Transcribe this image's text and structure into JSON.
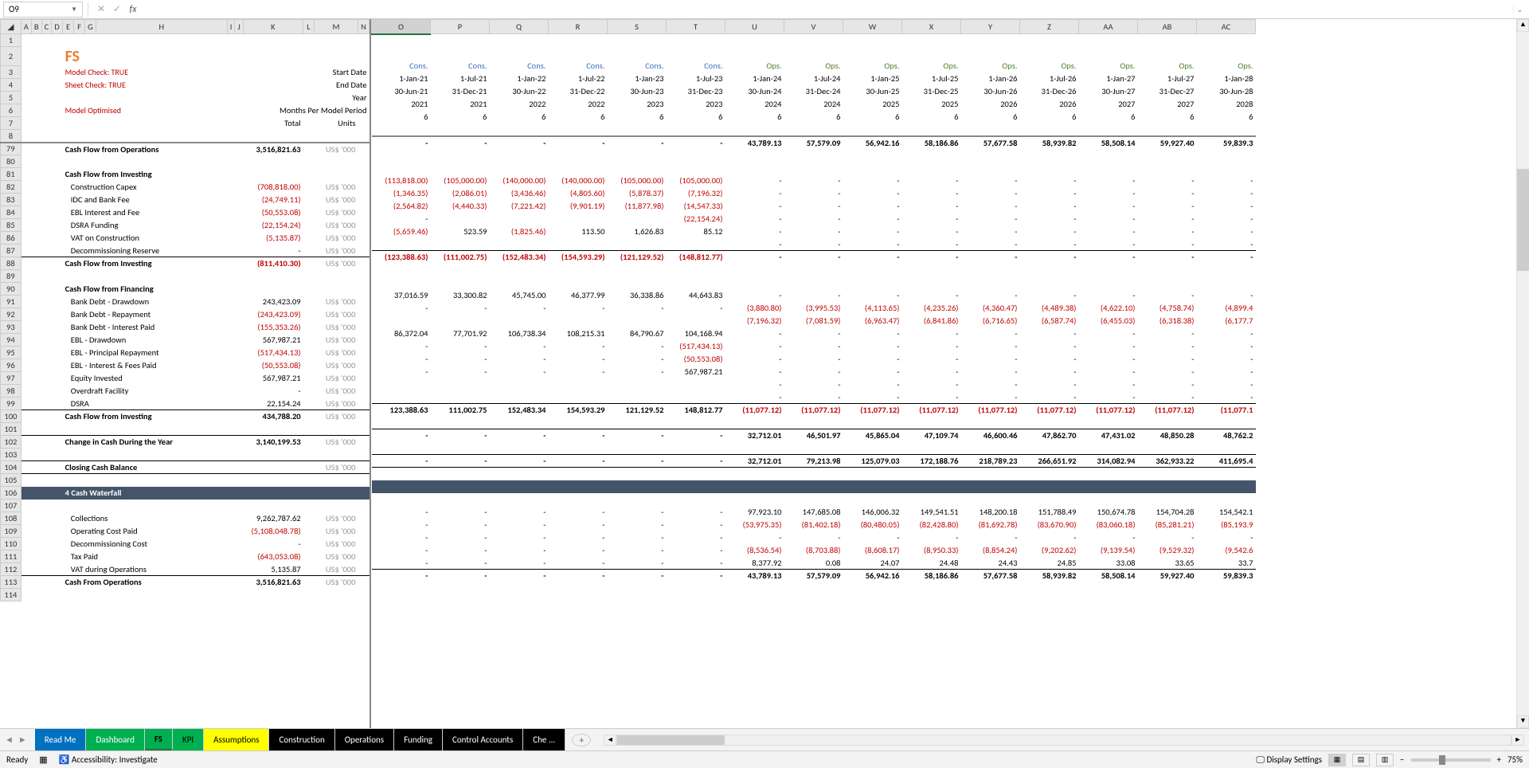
{
  "name_box": "O9",
  "formula": "",
  "title_cell": "FS",
  "checks": [
    "Model Check: TRUE",
    "Sheet Check: TRUE",
    "Model Optimised"
  ],
  "header_labels": {
    "start_date": "Start Date",
    "end_date": "End Date",
    "year": "Year",
    "months": "Months Per Model Period",
    "total": "Total",
    "units": "Units"
  },
  "col_letters_frozen": [
    "",
    "A",
    "B",
    "C",
    "D",
    "E",
    "F",
    "G",
    "H",
    "I",
    "J",
    "K",
    "L",
    "M",
    "N"
  ],
  "col_letters_scroll": [
    "O",
    "P",
    "Q",
    "R",
    "S",
    "T",
    "U",
    "V",
    "W",
    "X",
    "Y",
    "Z",
    "AA",
    "AB",
    "AC"
  ],
  "periods": [
    {
      "type": "Cons.",
      "start": "1-Jan-21",
      "end": "30-Jun-21",
      "year": "2021",
      "months": "6"
    },
    {
      "type": "Cons.",
      "start": "1-Jul-21",
      "end": "31-Dec-21",
      "year": "2021",
      "months": "6"
    },
    {
      "type": "Cons.",
      "start": "1-Jan-22",
      "end": "30-Jun-22",
      "year": "2022",
      "months": "6"
    },
    {
      "type": "Cons.",
      "start": "1-Jul-22",
      "end": "31-Dec-22",
      "year": "2022",
      "months": "6"
    },
    {
      "type": "Cons.",
      "start": "1-Jan-23",
      "end": "30-Jun-23",
      "year": "2023",
      "months": "6"
    },
    {
      "type": "Cons.",
      "start": "1-Jul-23",
      "end": "31-Dec-23",
      "year": "2023",
      "months": "6"
    },
    {
      "type": "Ops.",
      "start": "1-Jan-24",
      "end": "30-Jun-24",
      "year": "2024",
      "months": "6"
    },
    {
      "type": "Ops.",
      "start": "1-Jul-24",
      "end": "31-Dec-24",
      "year": "2024",
      "months": "6"
    },
    {
      "type": "Ops.",
      "start": "1-Jan-25",
      "end": "30-Jun-25",
      "year": "2025",
      "months": "6"
    },
    {
      "type": "Ops.",
      "start": "1-Jul-25",
      "end": "31-Dec-25",
      "year": "2025",
      "months": "6"
    },
    {
      "type": "Ops.",
      "start": "1-Jan-26",
      "end": "30-Jun-26",
      "year": "2026",
      "months": "6"
    },
    {
      "type": "Ops.",
      "start": "1-Jul-26",
      "end": "31-Dec-26",
      "year": "2026",
      "months": "6"
    },
    {
      "type": "Ops.",
      "start": "1-Jan-27",
      "end": "30-Jun-27",
      "year": "2027",
      "months": "6"
    },
    {
      "type": "Ops.",
      "start": "1-Jul-27",
      "end": "31-Dec-27",
      "year": "2027",
      "months": "6"
    },
    {
      "type": "Ops.",
      "start": "1-Jan-28",
      "end": "30-Jun-28",
      "year": "2028",
      "months": "6"
    }
  ],
  "rows": [
    {
      "r": 79,
      "label": "Cash Flow from Operations",
      "bold": true,
      "total": "3,516,821.63",
      "units": "US$ '000",
      "vals": [
        "-",
        "-",
        "-",
        "-",
        "-",
        "-",
        "43,789.13",
        "57,579.09",
        "56,942.16",
        "58,186.86",
        "57,677.58",
        "58,939.82",
        "58,508.14",
        "59,927.40",
        "59,839.3"
      ],
      "top": true
    },
    {
      "r": 80
    },
    {
      "r": 81,
      "label": "Cash Flow from Investing",
      "bold": true
    },
    {
      "r": 82,
      "label": "Construction Capex",
      "indent": 1,
      "total": "(708,818.00)",
      "neg": true,
      "units": "US$ '000",
      "vals": [
        "(113,818.00)",
        "(105,000.00)",
        "(140,000.00)",
        "(140,000.00)",
        "(105,000.00)",
        "(105,000.00)",
        "-",
        "-",
        "-",
        "-",
        "-",
        "-",
        "-",
        "-",
        "-"
      ]
    },
    {
      "r": 83,
      "label": "IDC and Bank Fee",
      "indent": 1,
      "total": "(24,749.11)",
      "neg": true,
      "units": "US$ '000",
      "vals": [
        "(1,346.35)",
        "(2,086.01)",
        "(3,436.46)",
        "(4,805.60)",
        "(5,878.37)",
        "(7,196.32)",
        "-",
        "-",
        "-",
        "-",
        "-",
        "-",
        "-",
        "-",
        "-"
      ]
    },
    {
      "r": 84,
      "label": "EBL Interest and Fee",
      "indent": 1,
      "total": "(50,553.08)",
      "neg": true,
      "units": "US$ '000",
      "vals": [
        "(2,564.82)",
        "(4,440.33)",
        "(7,221.42)",
        "(9,901.19)",
        "(11,877.98)",
        "(14,547.33)",
        "-",
        "-",
        "-",
        "-",
        "-",
        "-",
        "-",
        "-",
        "-"
      ]
    },
    {
      "r": 85,
      "label": "DSRA Funding",
      "indent": 1,
      "total": "(22,154.24)",
      "neg": true,
      "units": "US$ '000",
      "vals": [
        "-",
        "",
        "",
        "",
        "",
        "(22,154.24)",
        "-",
        "-",
        "-",
        "-",
        "-",
        "-",
        "-",
        "-",
        "-"
      ]
    },
    {
      "r": 86,
      "label": "VAT on Construction",
      "indent": 1,
      "total": "(5,135.87)",
      "neg": true,
      "units": "US$ '000",
      "vals": [
        "(5,659.46)",
        "523.59",
        "(1,825.46)",
        "113.50",
        "1,626.83",
        "85.12",
        "-",
        "-",
        "-",
        "-",
        "-",
        "-",
        "-",
        "-",
        "-"
      ]
    },
    {
      "r": 87,
      "label": "Decommissioning Reserve",
      "indent": 1,
      "total": "-",
      "units": "US$ '000",
      "vals": [
        "",
        "",
        "",
        "",
        "",
        "",
        "-",
        "-",
        "-",
        "-",
        "-",
        "-",
        "-",
        "-",
        "-"
      ]
    },
    {
      "r": 88,
      "label": "Cash Flow from Investing",
      "bold": true,
      "total": "(811,410.30)",
      "neg": true,
      "units": "US$ '000",
      "vals": [
        "(123,388.63)",
        "(111,002.75)",
        "(152,483.34)",
        "(154,593.29)",
        "(121,129.52)",
        "(148,812.77)",
        "-",
        "-",
        "-",
        "-",
        "-",
        "-",
        "-",
        "-",
        "-"
      ],
      "top": true,
      "negvals": true
    },
    {
      "r": 89
    },
    {
      "r": 90,
      "label": "Cash Flow from Financing",
      "bold": true
    },
    {
      "r": 91,
      "label": "Bank Debt - Drawdown",
      "indent": 1,
      "total": "243,423.09",
      "units": "US$ '000",
      "vals": [
        "37,016.59",
        "33,300.82",
        "45,745.00",
        "46,377.99",
        "36,338.86",
        "44,643.83",
        "-",
        "-",
        "-",
        "-",
        "-",
        "-",
        "-",
        "-",
        "-"
      ]
    },
    {
      "r": 92,
      "label": "Bank Debt - Repayment",
      "indent": 1,
      "total": "(243,423.09)",
      "neg": true,
      "units": "US$ '000",
      "vals": [
        "-",
        "-",
        "-",
        "-",
        "-",
        "-",
        "(3,880.80)",
        "(3,995.53)",
        "(4,113.65)",
        "(4,235.26)",
        "(4,360.47)",
        "(4,489.38)",
        "(4,622.10)",
        "(4,758.74)",
        "(4,899.4"
      ]
    },
    {
      "r": 93,
      "label": "Bank Debt - Interest Paid",
      "indent": 1,
      "total": "(155,353.26)",
      "neg": true,
      "units": "US$ '000",
      "vals": [
        "",
        "",
        "",
        "",
        "",
        "",
        "(7,196.32)",
        "(7,081.59)",
        "(6,963.47)",
        "(6,841.86)",
        "(6,716.65)",
        "(6,587.74)",
        "(6,455.03)",
        "(6,318.38)",
        "(6,177.7"
      ]
    },
    {
      "r": 94,
      "label": "EBL - Drawdown",
      "indent": 1,
      "total": "567,987.21",
      "units": "US$ '000",
      "vals": [
        "86,372.04",
        "77,701.92",
        "106,738.34",
        "108,215.31",
        "84,790.67",
        "104,168.94",
        "-",
        "-",
        "-",
        "-",
        "-",
        "-",
        "-",
        "-",
        "-"
      ]
    },
    {
      "r": 95,
      "label": "EBL - Principal Repayment",
      "indent": 1,
      "total": "(517,434.13)",
      "neg": true,
      "units": "US$ '000",
      "vals": [
        "-",
        "-",
        "-",
        "-",
        "-",
        "(517,434.13)",
        "-",
        "-",
        "-",
        "-",
        "-",
        "-",
        "-",
        "-",
        "-"
      ]
    },
    {
      "r": 96,
      "label": "EBL - Interest & Fees Paid",
      "indent": 1,
      "total": "(50,553.08)",
      "neg": true,
      "units": "US$ '000",
      "vals": [
        "-",
        "-",
        "-",
        "-",
        "-",
        "(50,553.08)",
        "-",
        "-",
        "-",
        "-",
        "-",
        "-",
        "-",
        "-",
        "-"
      ]
    },
    {
      "r": 97,
      "label": "Equity Invested",
      "indent": 1,
      "total": "567,987.21",
      "units": "US$ '000",
      "vals": [
        "-",
        "-",
        "-",
        "-",
        "-",
        "567,987.21",
        "-",
        "-",
        "-",
        "-",
        "-",
        "-",
        "-",
        "-",
        "-"
      ]
    },
    {
      "r": 98,
      "label": "Overdraft Facility",
      "indent": 1,
      "total": "-",
      "units": "US$ '000",
      "vals": [
        "",
        "",
        "",
        "",
        "",
        "",
        "-",
        "-",
        "-",
        "-",
        "-",
        "-",
        "-",
        "-",
        "-"
      ]
    },
    {
      "r": 99,
      "label": "DSRA",
      "indent": 1,
      "total": "22,154.24",
      "units": "US$ '000",
      "vals": [
        "",
        "",
        "",
        "",
        "",
        "",
        "-",
        "-",
        "-",
        "-",
        "-",
        "-",
        "-",
        "-",
        "-"
      ]
    },
    {
      "r": 100,
      "label": "Cash Flow from Investing",
      "bold": true,
      "total": "434,788.20",
      "units": "US$ '000",
      "vals": [
        "123,388.63",
        "111,002.75",
        "152,483.34",
        "154,593.29",
        "121,129.52",
        "148,812.77",
        "(11,077.12)",
        "(11,077.12)",
        "(11,077.12)",
        "(11,077.12)",
        "(11,077.12)",
        "(11,077.12)",
        "(11,077.12)",
        "(11,077.12)",
        "(11,077.1"
      ],
      "top": true
    },
    {
      "r": 101
    },
    {
      "r": 102,
      "label": "Change in Cash During the Year",
      "bold": true,
      "total": "3,140,199.53",
      "units": "US$ '000",
      "vals": [
        "-",
        "-",
        "-",
        "-",
        "-",
        "-",
        "32,712.01",
        "46,501.97",
        "45,865.04",
        "47,109.74",
        "46,600.46",
        "47,862.70",
        "47,431.02",
        "48,850.28",
        "48,762.2"
      ],
      "top": true
    },
    {
      "r": 103
    },
    {
      "r": 104,
      "label": "Closing Cash Balance",
      "bold": true,
      "units": "US$ '000",
      "vals": [
        "-",
        "-",
        "-",
        "-",
        "-",
        "-",
        "32,712.01",
        "79,213.98",
        "125,079.03",
        "172,188.76",
        "218,789.23",
        "266,651.92",
        "314,082.94",
        "362,933.22",
        "411,695.4"
      ],
      "top": true,
      "bottom": true
    },
    {
      "r": 105
    },
    {
      "r": 106,
      "section": "4  Cash Waterfall"
    },
    {
      "r": 107
    },
    {
      "r": 108,
      "label": "Collections",
      "indent": 1,
      "total": "9,262,787.62",
      "units": "US$ '000",
      "vals": [
        "-",
        "-",
        "-",
        "-",
        "-",
        "-",
        "97,923.10",
        "147,685.08",
        "146,006.32",
        "149,541.51",
        "148,200.18",
        "151,788.49",
        "150,674.78",
        "154,704.28",
        "154,542.1"
      ]
    },
    {
      "r": 109,
      "label": "Operating Cost Paid",
      "indent": 1,
      "total": "(5,108,048.78)",
      "neg": true,
      "units": "US$ '000",
      "vals": [
        "-",
        "-",
        "-",
        "-",
        "-",
        "-",
        "(53,975.35)",
        "(81,402.18)",
        "(80,480.05)",
        "(82,428.80)",
        "(81,692.78)",
        "(83,670.90)",
        "(83,060.18)",
        "(85,281.21)",
        "(85,193.9"
      ]
    },
    {
      "r": 110,
      "label": "Decommissioning Cost",
      "indent": 1,
      "total": "-",
      "units": "US$ '000",
      "vals": [
        "-",
        "-",
        "-",
        "-",
        "-",
        "-",
        "-",
        "-",
        "-",
        "-",
        "-",
        "-",
        "-",
        "-",
        "-"
      ]
    },
    {
      "r": 111,
      "label": "Tax Paid",
      "indent": 1,
      "total": "(643,053.08)",
      "neg": true,
      "units": "US$ '000",
      "vals": [
        "-",
        "-",
        "-",
        "-",
        "-",
        "-",
        "(8,536.54)",
        "(8,703.88)",
        "(8,608.17)",
        "(8,950.33)",
        "(8,854.24)",
        "(9,202.62)",
        "(9,139.54)",
        "(9,529.32)",
        "(9,542.6"
      ]
    },
    {
      "r": 112,
      "label": "VAT during Operations",
      "indent": 1,
      "total": "5,135.87",
      "units": "US$ '000",
      "vals": [
        "-",
        "-",
        "-",
        "-",
        "-",
        "-",
        "8,377.92",
        "0.08",
        "24.07",
        "24.48",
        "24.43",
        "24.85",
        "33.08",
        "33.65",
        "33.7"
      ]
    },
    {
      "r": 113,
      "label": "Cash From Operations",
      "bold": true,
      "total": "3,516,821.63",
      "units": "US$ '000",
      "vals": [
        "-",
        "-",
        "-",
        "-",
        "-",
        "-",
        "43,789.13",
        "57,579.09",
        "56,942.16",
        "58,186.86",
        "57,677.58",
        "58,939.82",
        "58,508.14",
        "59,927.40",
        "59,839.3"
      ],
      "top": true
    },
    {
      "r": 114
    }
  ],
  "tabs": [
    {
      "label": "Read Me",
      "cls": "readme"
    },
    {
      "label": "Dashboard",
      "cls": "dashboard"
    },
    {
      "label": "FS",
      "cls": "fs"
    },
    {
      "label": "KPI",
      "cls": "kpi"
    },
    {
      "label": "Assumptions",
      "cls": "assumptions"
    },
    {
      "label": "Construction",
      "cls": "dark"
    },
    {
      "label": "Operations",
      "cls": "dark"
    },
    {
      "label": "Funding",
      "cls": "dark"
    },
    {
      "label": "Control Accounts",
      "cls": "dark"
    },
    {
      "label": "Che ...",
      "cls": "dark"
    }
  ],
  "status": {
    "ready": "Ready",
    "accessibility": "Accessibility: Investigate",
    "display": "Display Settings",
    "zoom": "75%"
  }
}
